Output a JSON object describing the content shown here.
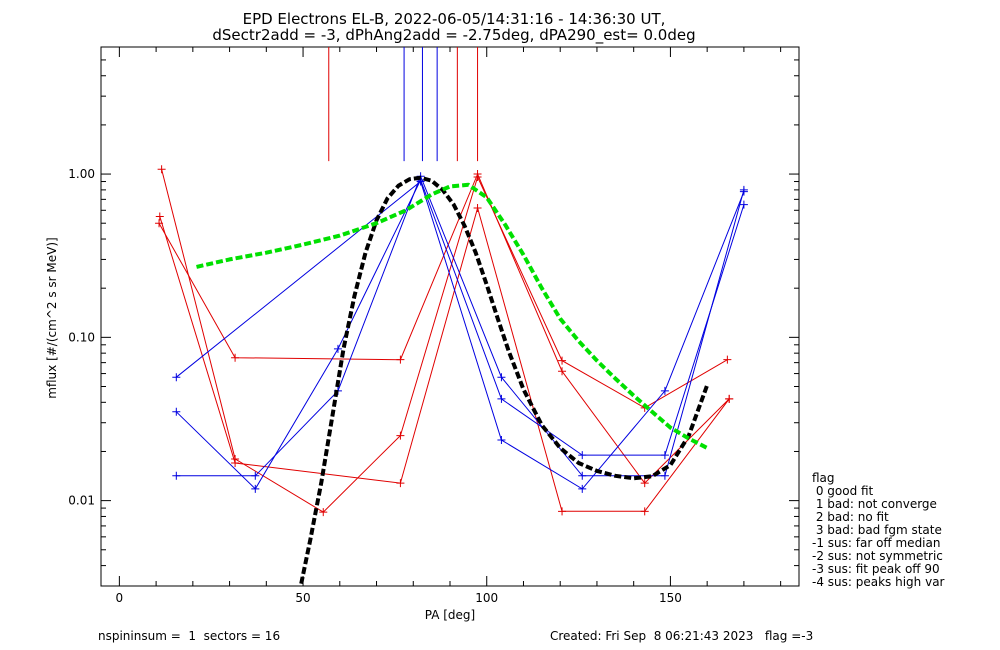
{
  "chart_data": {
    "type": "line",
    "title": "EPD Electrons EL-B, 2022-06-05/14:31:16 - 14:36:30 UT,",
    "subtitle": "dSectr2add = -3, dPhAng2add = -2.75deg, dPA290_est=   0.0deg",
    "xlabel": "PA [deg]",
    "ylabel": "mflux [#/(cm^2 s sr MeV)]",
    "xlim": [
      -5,
      185
    ],
    "ylim": [
      0.003,
      6
    ],
    "yscale": "log",
    "x_ticks": [
      0,
      50,
      100,
      150
    ],
    "x_tick_labels": [
      "0",
      "50",
      "100",
      "150"
    ],
    "y_ticks": [
      0.01,
      0.1,
      1.0
    ],
    "y_tick_labels": [
      "0.01",
      "0.10",
      "1.00"
    ],
    "grid": false,
    "colors": {
      "red": "#e00000",
      "blue": "#0000e0",
      "black": "#000000",
      "green": "#00e000"
    },
    "vertical_markers": [
      {
        "color": "#e00000",
        "x": 57,
        "y_from": 1.2,
        "y_to": 6
      },
      {
        "color": "#0000e0",
        "x": 77.5,
        "y_from": 1.2,
        "y_to": 6
      },
      {
        "color": "#0000e0",
        "x": 82.5,
        "y_from": 1.2,
        "y_to": 6
      },
      {
        "color": "#0000e0",
        "x": 86.5,
        "y_from": 1.2,
        "y_to": 6
      },
      {
        "color": "#e00000",
        "x": 92,
        "y_from": 1.2,
        "y_to": 6
      },
      {
        "color": "#e00000",
        "x": 97.5,
        "y_from": 1.2,
        "y_to": 6
      }
    ],
    "series": [
      {
        "color": "#e00000",
        "points": [
          [
            11.5,
            1.07
          ],
          [
            31.5,
            0.018
          ],
          [
            55.5,
            0.0085
          ],
          [
            76.5,
            0.025
          ],
          [
            97.5,
            0.96
          ],
          [
            120.5,
            0.072
          ],
          [
            143,
            0.037
          ],
          [
            165.5,
            0.073
          ]
        ]
      },
      {
        "color": "#e00000",
        "points": [
          [
            11,
            0.55
          ],
          [
            31.5,
            0.017
          ],
          [
            76.5,
            0.0128
          ],
          [
            97.5,
            0.62
          ],
          [
            120.5,
            0.0086
          ],
          [
            143,
            0.0086
          ],
          [
            166,
            0.042
          ]
        ]
      },
      {
        "color": "#e00000",
        "points": [
          [
            10.8,
            0.5
          ],
          [
            31.5,
            0.075
          ],
          [
            76.5,
            0.073
          ],
          [
            97.5,
            1.0
          ],
          [
            120.5,
            0.062
          ],
          [
            143,
            0.0128
          ],
          [
            166,
            0.042
          ]
        ]
      },
      {
        "color": "#0000e0",
        "points": [
          [
            15.5,
            0.0142
          ],
          [
            37,
            0.0142
          ],
          [
            59.5,
            0.047
          ],
          [
            82,
            0.97
          ],
          [
            104,
            0.057
          ],
          [
            126,
            0.0142
          ],
          [
            148.5,
            0.0142
          ],
          [
            170,
            0.8
          ]
        ]
      },
      {
        "color": "#0000e0",
        "points": [
          [
            15.5,
            0.035
          ],
          [
            37,
            0.0118
          ],
          [
            59.5,
            0.085
          ],
          [
            82,
            0.92
          ],
          [
            104,
            0.042
          ],
          [
            126,
            0.019
          ],
          [
            148.5,
            0.019
          ],
          [
            170,
            0.65
          ]
        ]
      },
      {
        "color": "#0000e0",
        "points": [
          [
            15.5,
            0.057
          ],
          [
            82,
            0.9
          ],
          [
            104,
            0.0235
          ],
          [
            126,
            0.0118
          ],
          [
            148.5,
            0.047
          ],
          [
            170,
            0.78
          ]
        ]
      }
    ],
    "fits": [
      {
        "color": "#000000",
        "style": "dashed",
        "points": [
          [
            49.5,
            0.0031
          ],
          [
            52,
            0.0058
          ],
          [
            55,
            0.013
          ],
          [
            58,
            0.033
          ],
          [
            61,
            0.085
          ],
          [
            64,
            0.18
          ],
          [
            67,
            0.33
          ],
          [
            70,
            0.52
          ],
          [
            73,
            0.71
          ],
          [
            76,
            0.85
          ],
          [
            79,
            0.93
          ],
          [
            82,
            0.95
          ],
          [
            85,
            0.91
          ],
          [
            88,
            0.8
          ],
          [
            91,
            0.65
          ],
          [
            94,
            0.48
          ],
          [
            97,
            0.33
          ],
          [
            100,
            0.21
          ],
          [
            103,
            0.13
          ],
          [
            106,
            0.082
          ],
          [
            110,
            0.048
          ],
          [
            115,
            0.029
          ],
          [
            120,
            0.021
          ],
          [
            125,
            0.017
          ],
          [
            130,
            0.0152
          ],
          [
            135,
            0.0142
          ],
          [
            140,
            0.0137
          ],
          [
            145,
            0.0141
          ],
          [
            150,
            0.0165
          ],
          [
            155,
            0.025
          ],
          [
            160,
            0.051
          ]
        ]
      },
      {
        "color": "#00e000",
        "style": "dashed",
        "points": [
          [
            21,
            0.27
          ],
          [
            30,
            0.3
          ],
          [
            40,
            0.33
          ],
          [
            50,
            0.37
          ],
          [
            60,
            0.42
          ],
          [
            70,
            0.5
          ],
          [
            78,
            0.6
          ],
          [
            85,
            0.75
          ],
          [
            90,
            0.84
          ],
          [
            95,
            0.86
          ],
          [
            100,
            0.72
          ],
          [
            105,
            0.49
          ],
          [
            110,
            0.32
          ],
          [
            115,
            0.2
          ],
          [
            120,
            0.13
          ],
          [
            125,
            0.095
          ],
          [
            130,
            0.072
          ],
          [
            135,
            0.056
          ],
          [
            140,
            0.044
          ],
          [
            145,
            0.035
          ],
          [
            150,
            0.028
          ],
          [
            155,
            0.024
          ],
          [
            160,
            0.021
          ]
        ]
      }
    ],
    "legend": {
      "placement": "right",
      "title": "flag",
      "entries": [
        " 0 good fit",
        " 1 bad: not converge",
        " 2 bad: no fit",
        " 3 bad: bad fgm state",
        "-1 sus: far off median",
        "-2 sus: not symmetric",
        "-3 sus: fit peak off 90",
        "-4 sus: peaks high var"
      ]
    },
    "footer_left": "nspininsum =  1  sectors = 16",
    "footer_right": "Created: Fri Sep  8 06:21:43 2023   flag =-3"
  }
}
